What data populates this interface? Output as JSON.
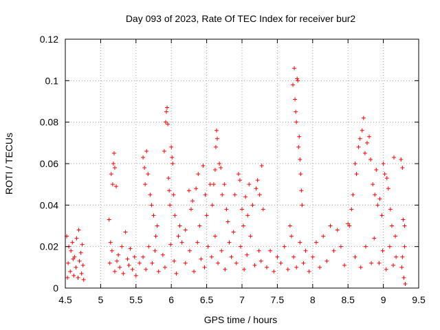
{
  "chart_data": {
    "type": "scatter",
    "title": "Day 093 of 2023, Rate Of TEC Index for receiver bur2",
    "xlabel": "GPS time / hours",
    "ylabel": "ROTI / TECUs",
    "xlim": [
      4.5,
      9.5
    ],
    "ylim": [
      0,
      0.12
    ],
    "x_ticks": [
      "4.5",
      "5",
      "5.5",
      "6",
      "6.5",
      "7",
      "7.5",
      "8",
      "8.5",
      "9",
      "9.5"
    ],
    "y_ticks": [
      "0",
      "0.02",
      "0.04",
      "0.06",
      "0.08",
      "0.1",
      "0.12"
    ],
    "grid": true,
    "marker": "+",
    "color": "#ff0000",
    "series": [
      {
        "points": [
          [
            4.52,
            0.025
          ],
          [
            4.54,
            0.012
          ],
          [
            4.55,
            0.02
          ],
          [
            4.57,
            0.008
          ],
          [
            4.58,
            0.018
          ],
          [
            4.6,
            0.022
          ],
          [
            4.62,
            0.006
          ],
          [
            4.63,
            0.015
          ],
          [
            4.65,
            0.01
          ],
          [
            4.66,
            0.024
          ],
          [
            4.68,
            0.005
          ],
          [
            4.69,
            0.028
          ],
          [
            4.7,
            0.013
          ],
          [
            4.72,
            0.017
          ],
          [
            4.73,
            0.007
          ],
          [
            4.74,
            0.021
          ],
          [
            4.75,
            0.011
          ],
          [
            4.76,
            0.004
          ],
          [
            4.53,
            0.005
          ],
          [
            4.61,
            0.014
          ],
          [
            5.12,
            0.033
          ],
          [
            5.13,
            0.012
          ],
          [
            5.14,
            0.022
          ],
          [
            5.15,
            0.055
          ],
          [
            5.17,
            0.05
          ],
          [
            5.18,
            0.06
          ],
          [
            5.19,
            0.065
          ],
          [
            5.2,
            0.058
          ],
          [
            5.22,
            0.049
          ],
          [
            5.16,
            0.018
          ],
          [
            5.2,
            0.008
          ],
          [
            5.23,
            0.013
          ],
          [
            5.25,
            0.016
          ],
          [
            5.27,
            0.01
          ],
          [
            5.3,
            0.02
          ],
          [
            5.32,
            0.007
          ],
          [
            5.35,
            0.027
          ],
          [
            5.38,
            0.014
          ],
          [
            5.4,
            0.011
          ],
          [
            5.42,
            0.019
          ],
          [
            5.45,
            0.009
          ],
          [
            5.48,
            0.015
          ],
          [
            5.5,
            0.006
          ],
          [
            5.55,
            0.012
          ],
          [
            5.6,
            0.063
          ],
          [
            5.62,
            0.058
          ],
          [
            5.63,
            0.05
          ],
          [
            5.65,
            0.066
          ],
          [
            5.67,
            0.055
          ],
          [
            5.7,
            0.045
          ],
          [
            5.72,
            0.04
          ],
          [
            5.75,
            0.035
          ],
          [
            5.78,
            0.025
          ],
          [
            5.8,
            0.03
          ],
          [
            5.6,
            0.015
          ],
          [
            5.64,
            0.009
          ],
          [
            5.68,
            0.02
          ],
          [
            5.73,
            0.012
          ],
          [
            5.77,
            0.018
          ],
          [
            5.82,
            0.008
          ],
          [
            5.9,
            0.066
          ],
          [
            5.92,
            0.08
          ],
          [
            5.93,
            0.085
          ],
          [
            5.94,
            0.087
          ],
          [
            5.95,
            0.079
          ],
          [
            5.96,
            0.053
          ],
          [
            5.97,
            0.047
          ],
          [
            5.98,
            0.04
          ],
          [
            6.0,
            0.068
          ],
          [
            6.01,
            0.063
          ],
          [
            6.02,
            0.06
          ],
          [
            6.03,
            0.045
          ],
          [
            6.05,
            0.035
          ],
          [
            5.88,
            0.016
          ],
          [
            5.91,
            0.01
          ],
          [
            5.99,
            0.021
          ],
          [
            6.04,
            0.013
          ],
          [
            6.07,
            0.007
          ],
          [
            6.1,
            0.025
          ],
          [
            6.12,
            0.03
          ],
          [
            6.15,
            0.022
          ],
          [
            6.2,
            0.028
          ],
          [
            6.25,
            0.047
          ],
          [
            6.28,
            0.038
          ],
          [
            6.3,
            0.042
          ],
          [
            6.35,
            0.048
          ],
          [
            6.38,
            0.055
          ],
          [
            6.4,
            0.03
          ],
          [
            6.45,
            0.059
          ],
          [
            6.48,
            0.045
          ],
          [
            6.5,
            0.035
          ],
          [
            6.55,
            0.05
          ],
          [
            6.58,
            0.04
          ],
          [
            6.2,
            0.012
          ],
          [
            6.26,
            0.018
          ],
          [
            6.32,
            0.008
          ],
          [
            6.37,
            0.022
          ],
          [
            6.42,
            0.014
          ],
          [
            6.47,
            0.01
          ],
          [
            6.52,
            0.02
          ],
          [
            6.57,
            0.015
          ],
          [
            6.6,
            0.05
          ],
          [
            6.62,
            0.057
          ],
          [
            6.63,
            0.068
          ],
          [
            6.64,
            0.076
          ],
          [
            6.65,
            0.072
          ],
          [
            6.68,
            0.06
          ],
          [
            6.7,
            0.058
          ],
          [
            6.72,
            0.045
          ],
          [
            6.75,
            0.05
          ],
          [
            6.78,
            0.038
          ],
          [
            6.8,
            0.032
          ],
          [
            6.62,
            0.025
          ],
          [
            6.66,
            0.012
          ],
          [
            6.71,
            0.018
          ],
          [
            6.76,
            0.009
          ],
          [
            6.82,
            0.022
          ],
          [
            6.85,
            0.015
          ],
          [
            6.88,
            0.027
          ],
          [
            6.9,
            0.045
          ],
          [
            6.95,
            0.055
          ],
          [
            6.97,
            0.052
          ],
          [
            7.0,
            0.038
          ],
          [
            7.02,
            0.03
          ],
          [
            7.05,
            0.044
          ],
          [
            7.08,
            0.035
          ],
          [
            7.1,
            0.05
          ],
          [
            7.15,
            0.04
          ],
          [
            7.2,
            0.048
          ],
          [
            7.22,
            0.052
          ],
          [
            7.25,
            0.045
          ],
          [
            7.28,
            0.059
          ],
          [
            7.3,
            0.038
          ],
          [
            6.92,
            0.012
          ],
          [
            6.98,
            0.02
          ],
          [
            7.03,
            0.009
          ],
          [
            7.07,
            0.016
          ],
          [
            7.12,
            0.025
          ],
          [
            7.18,
            0.011
          ],
          [
            7.24,
            0.018
          ],
          [
            7.27,
            0.013
          ],
          [
            7.35,
            0.01
          ],
          [
            7.4,
            0.018
          ],
          [
            7.45,
            0.008
          ],
          [
            7.5,
            0.015
          ],
          [
            7.55,
            0.012
          ],
          [
            7.6,
            0.02
          ],
          [
            7.65,
            0.009
          ],
          [
            7.68,
            0.03
          ],
          [
            7.7,
            0.025
          ],
          [
            7.72,
            0.098
          ],
          [
            7.74,
            0.106
          ],
          [
            7.75,
            0.091
          ],
          [
            7.76,
            0.085
          ],
          [
            7.77,
            0.08
          ],
          [
            7.78,
            0.101
          ],
          [
            7.79,
            0.1
          ],
          [
            7.8,
            0.068
          ],
          [
            7.81,
            0.073
          ],
          [
            7.82,
            0.062
          ],
          [
            7.83,
            0.055
          ],
          [
            7.84,
            0.047
          ],
          [
            7.85,
            0.04
          ],
          [
            7.73,
            0.015
          ],
          [
            7.77,
            0.01
          ],
          [
            7.82,
            0.022
          ],
          [
            7.87,
            0.012
          ],
          [
            7.9,
            0.018
          ],
          [
            7.95,
            0.008
          ],
          [
            8.0,
            0.015
          ],
          [
            8.05,
            0.022
          ],
          [
            8.1,
            0.01
          ],
          [
            8.15,
            0.025
          ],
          [
            8.2,
            0.013
          ],
          [
            8.25,
            0.03
          ],
          [
            8.3,
            0.018
          ],
          [
            8.35,
            0.028
          ],
          [
            8.4,
            0.02
          ],
          [
            8.45,
            0.011
          ],
          [
            8.5,
            0.031
          ],
          [
            8.52,
            0.03
          ],
          [
            8.55,
            0.038
          ],
          [
            8.57,
            0.045
          ],
          [
            8.6,
            0.06
          ],
          [
            8.62,
            0.055
          ],
          [
            8.65,
            0.068
          ],
          [
            8.67,
            0.072
          ],
          [
            8.7,
            0.076
          ],
          [
            8.72,
            0.082
          ],
          [
            8.74,
            0.065
          ],
          [
            8.77,
            0.07
          ],
          [
            8.8,
            0.073
          ],
          [
            8.82,
            0.062
          ],
          [
            8.85,
            0.05
          ],
          [
            8.88,
            0.045
          ],
          [
            8.9,
            0.057
          ],
          [
            8.6,
            0.015
          ],
          [
            8.68,
            0.01
          ],
          [
            8.75,
            0.02
          ],
          [
            8.83,
            0.012
          ],
          [
            8.87,
            0.024
          ],
          [
            8.92,
            0.04
          ],
          [
            8.95,
            0.043
          ],
          [
            8.98,
            0.035
          ],
          [
            9.0,
            0.06
          ],
          [
            9.02,
            0.055
          ],
          [
            9.05,
            0.053
          ],
          [
            9.07,
            0.048
          ],
          [
            9.1,
            0.038
          ],
          [
            9.12,
            0.03
          ],
          [
            9.15,
            0.063
          ],
          [
            9.17,
            0.025
          ],
          [
            8.94,
            0.012
          ],
          [
            8.99,
            0.018
          ],
          [
            9.04,
            0.009
          ],
          [
            9.09,
            0.02
          ],
          [
            9.14,
            0.011
          ],
          [
            9.18,
            0.015
          ],
          [
            9.25,
            0.062
          ],
          [
            9.27,
            0.058
          ],
          [
            9.28,
            0.033
          ],
          [
            9.3,
            0.03
          ],
          [
            9.26,
            0.01
          ],
          [
            9.29,
            0.005
          ],
          [
            9.31,
            0.002
          ],
          [
            9.27,
            0.015
          ],
          [
            9.3,
            0.02
          ]
        ]
      }
    ]
  }
}
